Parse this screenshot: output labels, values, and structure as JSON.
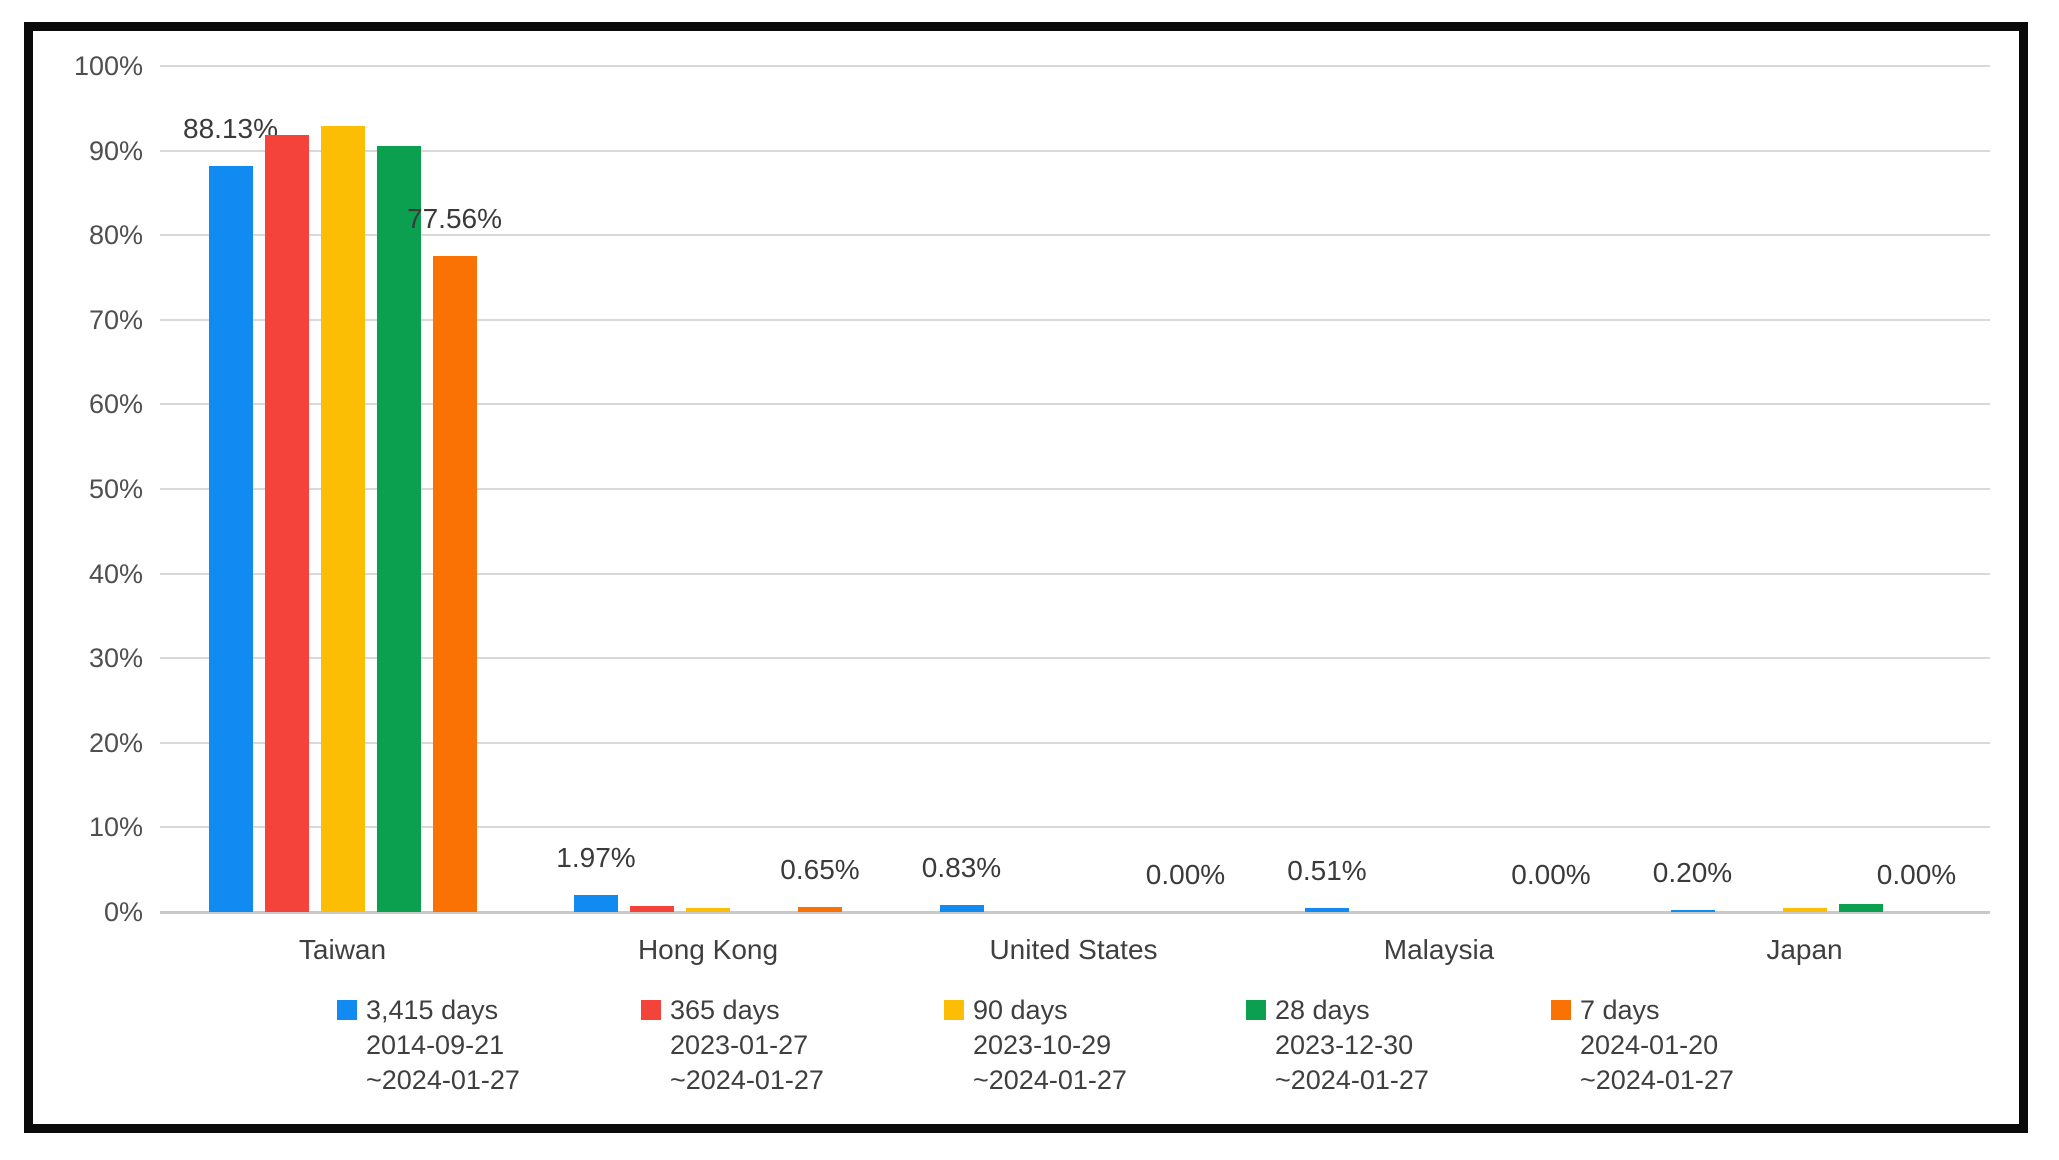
{
  "chart_data": {
    "type": "bar",
    "title": "",
    "xlabel": "",
    "ylabel": "",
    "ylim": [
      0,
      100
    ],
    "grid": true,
    "legend_position": "bottom",
    "yticks": [
      "0%",
      "10%",
      "20%",
      "30%",
      "40%",
      "50%",
      "60%",
      "70%",
      "80%",
      "90%",
      "100%"
    ],
    "categories": [
      "Taiwan",
      "Hong Kong",
      "United States",
      "Malaysia",
      "Japan"
    ],
    "series": [
      {
        "name": "3,415 days",
        "period_start": "2014-09-21",
        "period_end": "~2024-01-27",
        "color": "#118af2",
        "values": [
          88.13,
          1.97,
          0.83,
          0.51,
          0.2
        ],
        "data_labels": [
          "88.13%",
          "1.97%",
          "0.83%",
          "0.51%",
          "0.20%"
        ]
      },
      {
        "name": "365 days",
        "period_start": "2023-01-27",
        "period_end": "~2024-01-27",
        "color": "#f4433a",
        "values": [
          91.8,
          0.75,
          0,
          0,
          0
        ],
        "data_labels": []
      },
      {
        "name": "90 days",
        "period_start": "2023-10-29",
        "period_end": "~2024-01-27",
        "color": "#fcbd05",
        "values": [
          92.9,
          0.45,
          0,
          0,
          0.45
        ],
        "data_labels": []
      },
      {
        "name": "28 days",
        "period_start": "2023-12-30",
        "period_end": "~2024-01-27",
        "color": "#0ba04f",
        "values": [
          90.5,
          0,
          0,
          0,
          1.0
        ],
        "data_labels": []
      },
      {
        "name": "7 days",
        "period_start": "2024-01-20",
        "period_end": "~2024-01-27",
        "color": "#fa7104",
        "values": [
          77.56,
          0.65,
          0.0,
          0.0,
          0.0
        ],
        "data_labels": [
          "77.56%",
          "0.65%",
          "0.00%",
          "0.00%",
          "0.00%"
        ]
      }
    ]
  }
}
